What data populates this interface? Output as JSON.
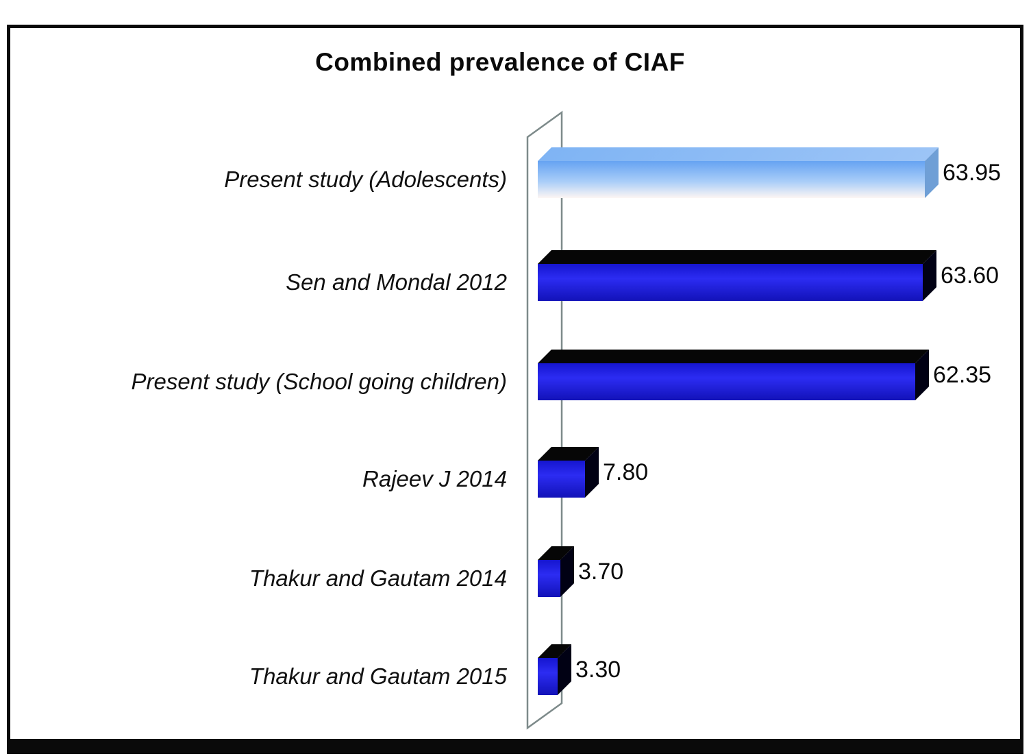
{
  "title": "Combined prevalence of CIAF",
  "chart_data": {
    "type": "bar",
    "orientation": "horizontal",
    "style": "3d",
    "title": "Combined prevalence of CIAF",
    "categories": [
      "Present study (Adolescents)",
      "Sen and Mondal 2012",
      "Present study (School going children)",
      "Rajeev J 2014",
      "Thakur and Gautam 2014",
      "Thakur and Gautam 2015"
    ],
    "values": [
      63.95,
      63.6,
      62.35,
      7.8,
      3.7,
      3.3
    ],
    "value_labels": [
      "63.95",
      "63.60",
      "62.35",
      "7.80",
      "3.70",
      "3.30"
    ],
    "xlabel": "",
    "ylabel": "",
    "xlim": [
      0,
      70
    ],
    "grid": false,
    "legend": false,
    "data_labels_position": "right-of-bar",
    "colors": {
      "bar_front_blue": "#2c2cf2",
      "bar_top_black": "#060606",
      "highlight_bar_top_color": "#66a3f2",
      "highlight_bar_bottom_color": "#fdf6f4",
      "axis_line": "#7d8a8a",
      "text": "#0a0a0a",
      "frame_border": "#0a0a0a",
      "background": "#ffffff"
    }
  }
}
